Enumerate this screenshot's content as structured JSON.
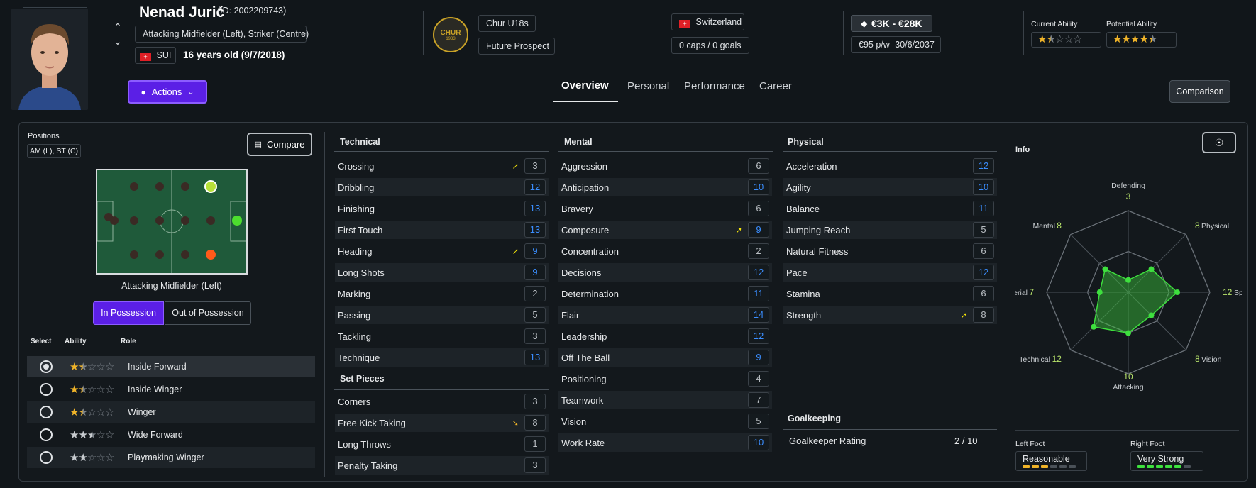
{
  "header": {
    "player_name": "Nenad Jurić",
    "player_id": "(ID: 2002209743)",
    "position": "Attacking Midfielder (Left), Striker (Centre)",
    "nationality_code": "SUI",
    "age": "16 years old (9/7/2018)",
    "club": "Chur U18s",
    "status": "Future Prospect",
    "club_logo_text": "CHUR",
    "club_logo_year": "1933",
    "nation": "Switzerland",
    "caps": "0 caps / 0 goals",
    "value": "€3K - €28K",
    "wage": "€95 p/w",
    "contract_end": "30/6/2037",
    "current_ability_label": "Current Ability",
    "potential_ability_label": "Potential Ability",
    "current_ability_stars": 1.5,
    "potential_ability_stars": 4.5,
    "actions_label": "Actions",
    "comparison_label": "Comparison",
    "tabs": [
      "Overview",
      "Personal",
      "Performance",
      "Career"
    ]
  },
  "positions": {
    "title": "Positions",
    "value": "AM (L), ST (C)",
    "compare_label": "Compare",
    "selected_position": "Attacking Midfielder (Left)",
    "in_possession": "In Possession",
    "out_of_possession": "Out of Possession",
    "col_select": "Select",
    "col_ability": "Ability",
    "col_role": "Role",
    "roles": [
      {
        "name": "Inside Forward",
        "stars": 1.5,
        "color": "#f0b429",
        "selected": true
      },
      {
        "name": "Inside Winger",
        "stars": 1.5,
        "color": "#f0b429",
        "selected": false
      },
      {
        "name": "Winger",
        "stars": 1.5,
        "color": "#f0b429",
        "selected": false
      },
      {
        "name": "Wide Forward",
        "stars": 2.5,
        "color": "#c8ccd0",
        "selected": false
      },
      {
        "name": "Playmaking Winger",
        "stars": 2,
        "color": "#c8ccd0",
        "selected": false
      }
    ]
  },
  "technical": {
    "title": "Technical",
    "attrs": [
      {
        "name": "Crossing",
        "value": "3",
        "arrow": "up"
      },
      {
        "name": "Dribbling",
        "value": "12"
      },
      {
        "name": "Finishing",
        "value": "13"
      },
      {
        "name": "First Touch",
        "value": "13"
      },
      {
        "name": "Heading",
        "value": "9",
        "arrow": "up"
      },
      {
        "name": "Long Shots",
        "value": "9"
      },
      {
        "name": "Marking",
        "value": "2"
      },
      {
        "name": "Passing",
        "value": "5"
      },
      {
        "name": "Tackling",
        "value": "3"
      },
      {
        "name": "Technique",
        "value": "13"
      }
    ]
  },
  "set_pieces": {
    "title": "Set Pieces",
    "attrs": [
      {
        "name": "Corners",
        "value": "3"
      },
      {
        "name": "Free Kick Taking",
        "value": "8",
        "arrow": "down"
      },
      {
        "name": "Long Throws",
        "value": "1"
      },
      {
        "name": "Penalty Taking",
        "value": "3"
      }
    ]
  },
  "mental": {
    "title": "Mental",
    "attrs": [
      {
        "name": "Aggression",
        "value": "6"
      },
      {
        "name": "Anticipation",
        "value": "10"
      },
      {
        "name": "Bravery",
        "value": "6"
      },
      {
        "name": "Composure",
        "value": "9",
        "arrow": "up"
      },
      {
        "name": "Concentration",
        "value": "2"
      },
      {
        "name": "Decisions",
        "value": "12"
      },
      {
        "name": "Determination",
        "value": "11"
      },
      {
        "name": "Flair",
        "value": "14"
      },
      {
        "name": "Leadership",
        "value": "12"
      },
      {
        "name": "Off The Ball",
        "value": "9"
      },
      {
        "name": "Positioning",
        "value": "4"
      },
      {
        "name": "Teamwork",
        "value": "7"
      },
      {
        "name": "Vision",
        "value": "5"
      },
      {
        "name": "Work Rate",
        "value": "10"
      }
    ]
  },
  "physical": {
    "title": "Physical",
    "attrs": [
      {
        "name": "Acceleration",
        "value": "12"
      },
      {
        "name": "Agility",
        "value": "10"
      },
      {
        "name": "Balance",
        "value": "11"
      },
      {
        "name": "Jumping Reach",
        "value": "5"
      },
      {
        "name": "Natural Fitness",
        "value": "6"
      },
      {
        "name": "Pace",
        "value": "12"
      },
      {
        "name": "Stamina",
        "value": "6"
      },
      {
        "name": "Strength",
        "value": "8",
        "arrow": "up"
      }
    ]
  },
  "goalkeeping": {
    "title": "Goalkeeping",
    "rating_label": "Goalkeeper Rating",
    "rating_value": "2 / 10"
  },
  "info": {
    "title": "Info",
    "radar": [
      {
        "label": "Defending",
        "value": "3"
      },
      {
        "label": "Physical",
        "value": "8"
      },
      {
        "label": "Speed",
        "value": "12"
      },
      {
        "label": "Vision",
        "value": "8"
      },
      {
        "label": "Attacking",
        "value": "10"
      },
      {
        "label": "Technical",
        "value": "12"
      },
      {
        "label": "Aerial",
        "value": "7"
      },
      {
        "label": "Mental",
        "value": "8"
      }
    ],
    "left_foot_label": "Left Foot",
    "left_foot_value": "Reasonable",
    "left_foot_level": 3,
    "right_foot_label": "Right Foot",
    "right_foot_value": "Very Strong",
    "right_foot_level": 5
  }
}
